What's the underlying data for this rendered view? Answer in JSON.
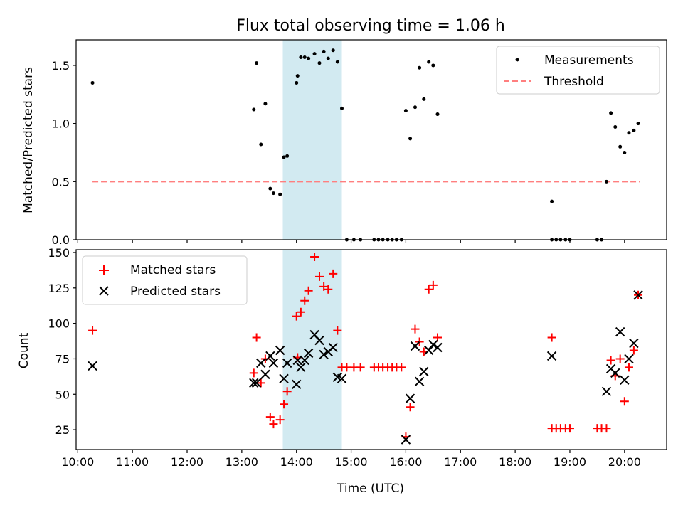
{
  "colors": {
    "shade": "#add8e6",
    "threshold": "#ff7f7f",
    "matched": "#ff0000",
    "predicted": "#000000",
    "measure": "#000000"
  },
  "chart_data": [
    {
      "type": "scatter",
      "title": "Flux total observing time = 1.06 h",
      "xlabel": "",
      "ylabel": "Matched/Predicted stars",
      "xlim": [
        9.97,
        20.77
      ],
      "ylim": [
        0,
        1.72
      ],
      "yticks": [
        0.0,
        0.5,
        1.0,
        1.5
      ],
      "ytick_labels": [
        "0.0",
        "0.5",
        "1.0",
        "1.5"
      ],
      "shaded_span": [
        13.75,
        14.83
      ],
      "legend": {
        "placement": "top-right",
        "entries": [
          "Measurements",
          "Threshold"
        ]
      },
      "threshold": {
        "name": "Threshold",
        "value": 0.5,
        "x_range": [
          10.27,
          20.28
        ]
      },
      "series": [
        {
          "name": "Measurements",
          "points": [
            [
              10.27,
              1.35
            ],
            [
              13.22,
              1.12
            ],
            [
              13.27,
              1.52
            ],
            [
              13.35,
              0.82
            ],
            [
              13.43,
              1.17
            ],
            [
              13.52,
              0.44
            ],
            [
              13.58,
              0.4
            ],
            [
              13.7,
              0.39
            ],
            [
              13.77,
              0.71
            ],
            [
              13.83,
              0.72
            ],
            [
              14.0,
              1.35
            ],
            [
              14.02,
              1.41
            ],
            [
              14.08,
              1.57
            ],
            [
              14.15,
              1.57
            ],
            [
              14.22,
              1.56
            ],
            [
              14.33,
              1.6
            ],
            [
              14.42,
              1.52
            ],
            [
              14.5,
              1.62
            ],
            [
              14.58,
              1.56
            ],
            [
              14.67,
              1.63
            ],
            [
              14.75,
              1.53
            ],
            [
              14.83,
              1.13
            ],
            [
              14.92,
              0.0
            ],
            [
              15.05,
              0.0
            ],
            [
              15.17,
              0.0
            ],
            [
              15.42,
              0.0
            ],
            [
              15.5,
              0.0
            ],
            [
              15.58,
              0.0
            ],
            [
              15.67,
              0.0
            ],
            [
              15.75,
              0.0
            ],
            [
              15.83,
              0.0
            ],
            [
              15.92,
              0.0
            ],
            [
              16.0,
              1.11
            ],
            [
              16.08,
              0.87
            ],
            [
              16.17,
              1.14
            ],
            [
              16.25,
              1.48
            ],
            [
              16.33,
              1.21
            ],
            [
              16.42,
              1.53
            ],
            [
              16.5,
              1.5
            ],
            [
              16.58,
              1.08
            ],
            [
              18.67,
              0.33
            ],
            [
              18.67,
              0.0
            ],
            [
              18.75,
              0.0
            ],
            [
              18.83,
              0.0
            ],
            [
              18.92,
              0.0
            ],
            [
              19.0,
              0.0
            ],
            [
              19.5,
              0.0
            ],
            [
              19.58,
              0.0
            ],
            [
              19.67,
              0.5
            ],
            [
              19.75,
              1.09
            ],
            [
              19.83,
              0.97
            ],
            [
              19.92,
              0.8
            ],
            [
              20.0,
              0.75
            ],
            [
              20.08,
              0.92
            ],
            [
              20.17,
              0.94
            ],
            [
              20.25,
              1.0
            ]
          ]
        }
      ]
    },
    {
      "type": "scatter",
      "title": "",
      "xlabel": "Time (UTC)",
      "ylabel": "Count",
      "xlim": [
        9.97,
        20.77
      ],
      "ylim": [
        11,
        152
      ],
      "yticks": [
        25,
        50,
        75,
        100,
        125,
        150
      ],
      "ytick_labels": [
        "25",
        "50",
        "75",
        "100",
        "125",
        "150"
      ],
      "xticks": [
        10,
        11,
        12,
        13,
        14,
        15,
        16,
        17,
        18,
        19,
        20
      ],
      "xtick_labels": [
        "10:00",
        "11:00",
        "12:00",
        "13:00",
        "14:00",
        "15:00",
        "16:00",
        "17:00",
        "18:00",
        "19:00",
        "20:00"
      ],
      "shaded_span": [
        13.75,
        14.83
      ],
      "legend": {
        "placement": "top-left",
        "entries": [
          "Matched stars",
          "Predicted stars"
        ]
      },
      "series": [
        {
          "name": "Matched stars",
          "marker": "plus",
          "points": [
            [
              10.27,
              95
            ],
            [
              13.22,
              65
            ],
            [
              13.27,
              90
            ],
            [
              13.35,
              58
            ],
            [
              13.43,
              75
            ],
            [
              13.52,
              34
            ],
            [
              13.58,
              29
            ],
            [
              13.7,
              32
            ],
            [
              13.77,
              43
            ],
            [
              13.83,
              52
            ],
            [
              14.0,
              105
            ],
            [
              14.02,
              76
            ],
            [
              14.08,
              108
            ],
            [
              14.15,
              116
            ],
            [
              14.22,
              123
            ],
            [
              14.33,
              147
            ],
            [
              14.42,
              133
            ],
            [
              14.5,
              126
            ],
            [
              14.58,
              124
            ],
            [
              14.67,
              135
            ],
            [
              14.75,
              95
            ],
            [
              14.83,
              69
            ],
            [
              14.92,
              69
            ],
            [
              15.05,
              69
            ],
            [
              15.17,
              69
            ],
            [
              15.42,
              69
            ],
            [
              15.5,
              69
            ],
            [
              15.58,
              69
            ],
            [
              15.67,
              69
            ],
            [
              15.75,
              69
            ],
            [
              15.83,
              69
            ],
            [
              15.92,
              69
            ],
            [
              16.0,
              20
            ],
            [
              16.08,
              41
            ],
            [
              16.17,
              96
            ],
            [
              16.25,
              87
            ],
            [
              16.33,
              80
            ],
            [
              16.42,
              124
            ],
            [
              16.5,
              127
            ],
            [
              16.58,
              90
            ],
            [
              18.67,
              90
            ],
            [
              18.67,
              26
            ],
            [
              18.75,
              26
            ],
            [
              18.83,
              26
            ],
            [
              18.92,
              26
            ],
            [
              19.0,
              26
            ],
            [
              19.5,
              26
            ],
            [
              19.58,
              26
            ],
            [
              19.67,
              26
            ],
            [
              19.75,
              74
            ],
            [
              19.83,
              63
            ],
            [
              19.92,
              75
            ],
            [
              20.0,
              45
            ],
            [
              20.08,
              69
            ],
            [
              20.17,
              81
            ],
            [
              20.25,
              120
            ]
          ]
        },
        {
          "name": "Predicted stars",
          "marker": "x",
          "points": [
            [
              10.27,
              70
            ],
            [
              13.22,
              58
            ],
            [
              13.27,
              58
            ],
            [
              13.35,
              72
            ],
            [
              13.43,
              64
            ],
            [
              13.52,
              77
            ],
            [
              13.58,
              72
            ],
            [
              13.7,
              81
            ],
            [
              13.77,
              61
            ],
            [
              13.83,
              72
            ],
            [
              14.0,
              57
            ],
            [
              14.02,
              74
            ],
            [
              14.08,
              69
            ],
            [
              14.15,
              74
            ],
            [
              14.22,
              79
            ],
            [
              14.33,
              92
            ],
            [
              14.42,
              88
            ],
            [
              14.5,
              78
            ],
            [
              14.58,
              80
            ],
            [
              14.67,
              83
            ],
            [
              14.75,
              62
            ],
            [
              14.83,
              61
            ],
            [
              16.0,
              18
            ],
            [
              16.08,
              47
            ],
            [
              16.17,
              84
            ],
            [
              16.25,
              59
            ],
            [
              16.33,
              66
            ],
            [
              16.42,
              81
            ],
            [
              16.5,
              85
            ],
            [
              16.58,
              83
            ],
            [
              18.67,
              77
            ],
            [
              19.67,
              52
            ],
            [
              19.75,
              68
            ],
            [
              19.83,
              65
            ],
            [
              19.92,
              94
            ],
            [
              20.0,
              60
            ],
            [
              20.08,
              75
            ],
            [
              20.17,
              86
            ],
            [
              20.25,
              120
            ]
          ]
        }
      ]
    }
  ]
}
